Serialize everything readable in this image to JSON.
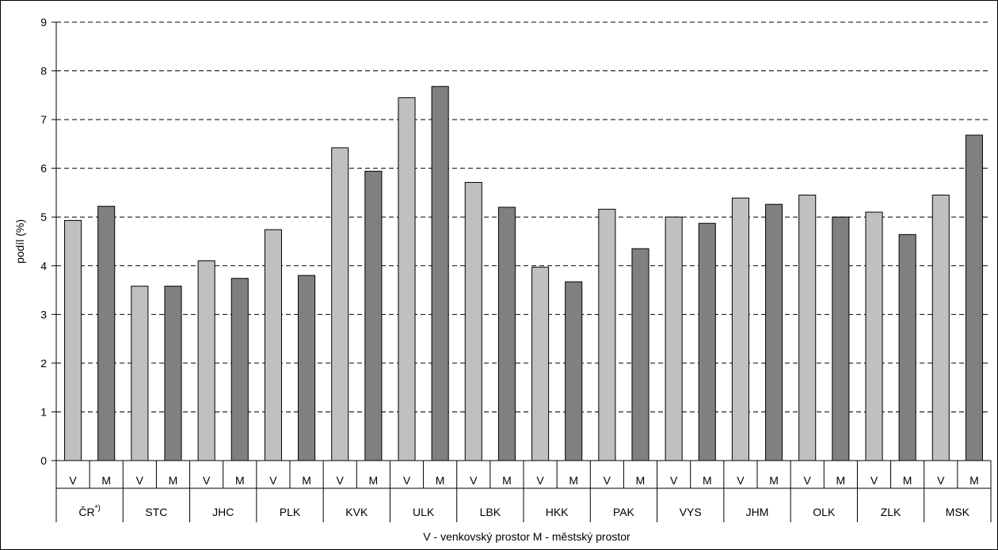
{
  "chart_data": {
    "type": "bar",
    "ylabel": "podíl (%)",
    "xlabel": "V - venkovský prostor  M - městský prostor",
    "ylim": [
      0,
      9
    ],
    "yticks": [
      0,
      1,
      2,
      3,
      4,
      5,
      6,
      7,
      8,
      9
    ],
    "grid": "dashed horizontal",
    "categories": [
      "ČR",
      "STC",
      "JHC",
      "PLK",
      "KVK",
      "ULK",
      "LBK",
      "HKK",
      "PAK",
      "VYS",
      "JHM",
      "OLK",
      "ZLK",
      "MSK"
    ],
    "category_note": [
      "*)",
      "",
      "",
      "",
      "",
      "",
      "",
      "",
      "",
      "",
      "",
      "",
      "",
      ""
    ],
    "series": [
      {
        "name": "V",
        "color": "#c0c0c0",
        "values": [
          4.93,
          3.58,
          4.1,
          4.74,
          6.42,
          7.45,
          5.71,
          3.97,
          5.16,
          5.0,
          5.39,
          5.45,
          5.1,
          5.45
        ]
      },
      {
        "name": "M",
        "color": "#808080",
        "values": [
          5.22,
          3.58,
          3.74,
          3.8,
          5.94,
          7.68,
          5.2,
          3.67,
          4.35,
          4.87,
          5.26,
          5.0,
          4.64,
          6.68
        ]
      }
    ]
  }
}
